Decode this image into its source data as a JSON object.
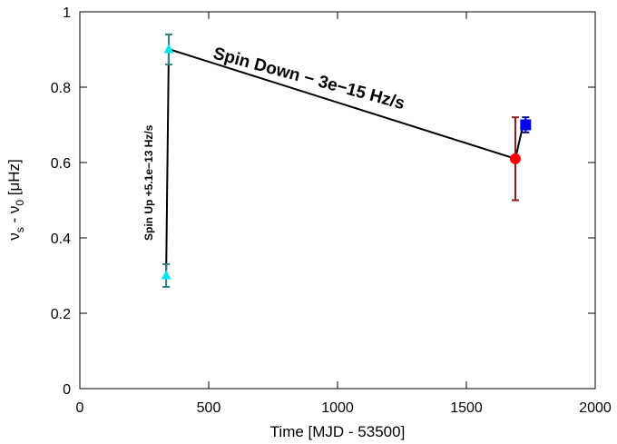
{
  "chart_data": {
    "type": "scatter",
    "title": "",
    "xlabel": "Time [MJD - 53500]",
    "ylabel_parts": {
      "nu_s": "ν",
      "sub_s": "s",
      "dash": " - ",
      "nu_0": "ν",
      "sub_0": "0",
      "unit": " [μHz]"
    },
    "xlim": [
      0,
      2000
    ],
    "ylim": [
      0,
      1
    ],
    "xticks": [
      0,
      500,
      1000,
      1500,
      2000
    ],
    "yticks": [
      0,
      0.2,
      0.4,
      0.6,
      0.8,
      1
    ],
    "xtick_labels": [
      "0",
      "500",
      "1000",
      "1500",
      "2000"
    ],
    "ytick_labels": [
      "0",
      "0.2",
      "0.4",
      "0.6",
      "0.8",
      "1"
    ],
    "grid": false,
    "line": {
      "name": "timing model",
      "color": "#000000",
      "x": [
        335,
        345,
        350,
        1690,
        1720
      ],
      "y": [
        0.3,
        0.9,
        0.9,
        0.61,
        0.7
      ]
    },
    "series": [
      {
        "name": "cyan triangles",
        "marker": "triangle",
        "color": "#00e5ee",
        "errcolor": "#2f7f7f",
        "points": [
          {
            "x": 335,
            "y": 0.3,
            "yerr": 0.03
          },
          {
            "x": 345,
            "y": 0.9,
            "yerr": 0.04
          }
        ]
      },
      {
        "name": "red circle",
        "marker": "circle",
        "color": "#ff0000",
        "errcolor": "#8b1a1a",
        "points": [
          {
            "x": 1690,
            "y": 0.61,
            "yerr": 0.11
          }
        ]
      },
      {
        "name": "blue square",
        "marker": "square",
        "color": "#0000ee",
        "errcolor": "#00008b",
        "points": [
          {
            "x": 1730,
            "y": 0.7,
            "yerr": 0.02
          }
        ]
      }
    ],
    "annotations": {
      "spin_down": "Spin Down  − 3e−15 Hz/s",
      "spin_up": "Spin Up +5.1e−13 Hz/s"
    }
  }
}
